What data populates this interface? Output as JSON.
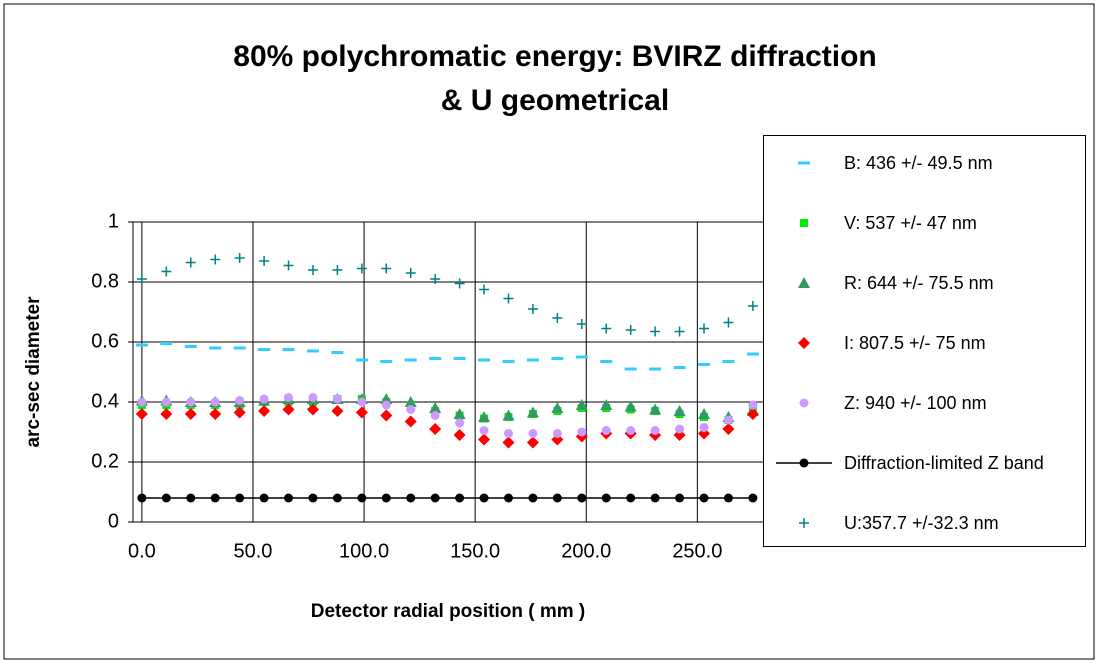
{
  "chart_data": {
    "type": "scatter",
    "title": [
      "80% polychromatic energy:  BVIRZ diffraction",
      "& U geometrical"
    ],
    "x_label": "Detector radial position ( mm )",
    "y_label": "arc-sec diameter",
    "x": [
      0,
      11,
      22,
      33,
      44,
      55,
      66,
      77,
      88,
      99,
      110,
      121,
      132,
      143,
      154,
      165,
      176,
      187,
      198,
      209,
      220,
      231,
      242,
      253,
      264,
      275
    ],
    "xlim": [
      -4,
      280
    ],
    "xticks": [
      {
        "value": 0,
        "label": "0.0"
      },
      {
        "value": 50,
        "label": "50.0"
      },
      {
        "value": 100,
        "label": "100.0"
      },
      {
        "value": 150,
        "label": "150.0"
      },
      {
        "value": 200,
        "label": "200.0"
      },
      {
        "value": 250,
        "label": "250.0"
      }
    ],
    "ylim": [
      0,
      1
    ],
    "yticks": [
      0,
      0.2,
      0.4,
      0.6,
      0.8,
      1
    ],
    "grid": true,
    "legend": "right",
    "series": [
      {
        "name": "B: 436 +/- 49.5 nm",
        "color": "#33ccff",
        "marker": "dash",
        "values": [
          0.59,
          0.595,
          0.585,
          0.58,
          0.58,
          0.575,
          0.575,
          0.57,
          0.565,
          0.54,
          0.535,
          0.54,
          0.545,
          0.545,
          0.54,
          0.535,
          0.54,
          0.545,
          0.55,
          0.535,
          0.51,
          0.51,
          0.515,
          0.525,
          0.535,
          0.56
        ]
      },
      {
        "name": "V: 537 +/- 47 nm",
        "color": "#00ee00",
        "marker": "square",
        "values": [
          0.39,
          0.39,
          0.39,
          0.39,
          0.39,
          0.4,
          0.4,
          0.4,
          0.41,
          0.41,
          0.4,
          0.39,
          0.37,
          0.355,
          0.345,
          0.35,
          0.36,
          0.37,
          0.38,
          0.38,
          0.375,
          0.37,
          0.36,
          0.35,
          0.34,
          0.38
        ]
      },
      {
        "name": "R: 644 +/- 75.5 nm",
        "color": "#339966",
        "marker": "triangle",
        "values": [
          0.405,
          0.405,
          0.4,
          0.4,
          0.4,
          0.405,
          0.41,
          0.41,
          0.41,
          0.41,
          0.41,
          0.4,
          0.38,
          0.36,
          0.35,
          0.355,
          0.365,
          0.38,
          0.39,
          0.39,
          0.385,
          0.375,
          0.37,
          0.36,
          0.35,
          0.37
        ]
      },
      {
        "name": "I: 807.5 +/- 75 nm",
        "color": "#ff0000",
        "marker": "diamond",
        "values": [
          0.36,
          0.36,
          0.36,
          0.36,
          0.365,
          0.37,
          0.375,
          0.375,
          0.37,
          0.365,
          0.355,
          0.335,
          0.31,
          0.29,
          0.275,
          0.265,
          0.265,
          0.275,
          0.285,
          0.295,
          0.295,
          0.29,
          0.29,
          0.295,
          0.31,
          0.36
        ]
      },
      {
        "name": "Z: 940 +/- 100 nm",
        "color": "#cc99ff",
        "marker": "circle",
        "values": [
          0.4,
          0.4,
          0.4,
          0.4,
          0.405,
          0.41,
          0.415,
          0.415,
          0.41,
          0.4,
          0.39,
          0.375,
          0.355,
          0.33,
          0.305,
          0.295,
          0.295,
          0.295,
          0.3,
          0.305,
          0.305,
          0.305,
          0.31,
          0.315,
          0.34,
          0.39
        ]
      },
      {
        "name": "Diffraction-limited Z band",
        "color": "#000000",
        "marker": "circle",
        "line": true,
        "values": [
          0.08,
          0.08,
          0.08,
          0.08,
          0.08,
          0.08,
          0.08,
          0.08,
          0.08,
          0.08,
          0.08,
          0.08,
          0.08,
          0.08,
          0.08,
          0.08,
          0.08,
          0.08,
          0.08,
          0.08,
          0.08,
          0.08,
          0.08,
          0.08,
          0.08,
          0.08
        ]
      },
      {
        "name": "U:357.7 +/-32.3 nm",
        "color": "#008080",
        "marker": "plus",
        "values": [
          0.81,
          0.835,
          0.865,
          0.875,
          0.88,
          0.87,
          0.855,
          0.84,
          0.84,
          0.845,
          0.845,
          0.83,
          0.81,
          0.795,
          0.775,
          0.745,
          0.71,
          0.68,
          0.66,
          0.645,
          0.64,
          0.635,
          0.635,
          0.645,
          0.665,
          0.72
        ]
      }
    ]
  }
}
